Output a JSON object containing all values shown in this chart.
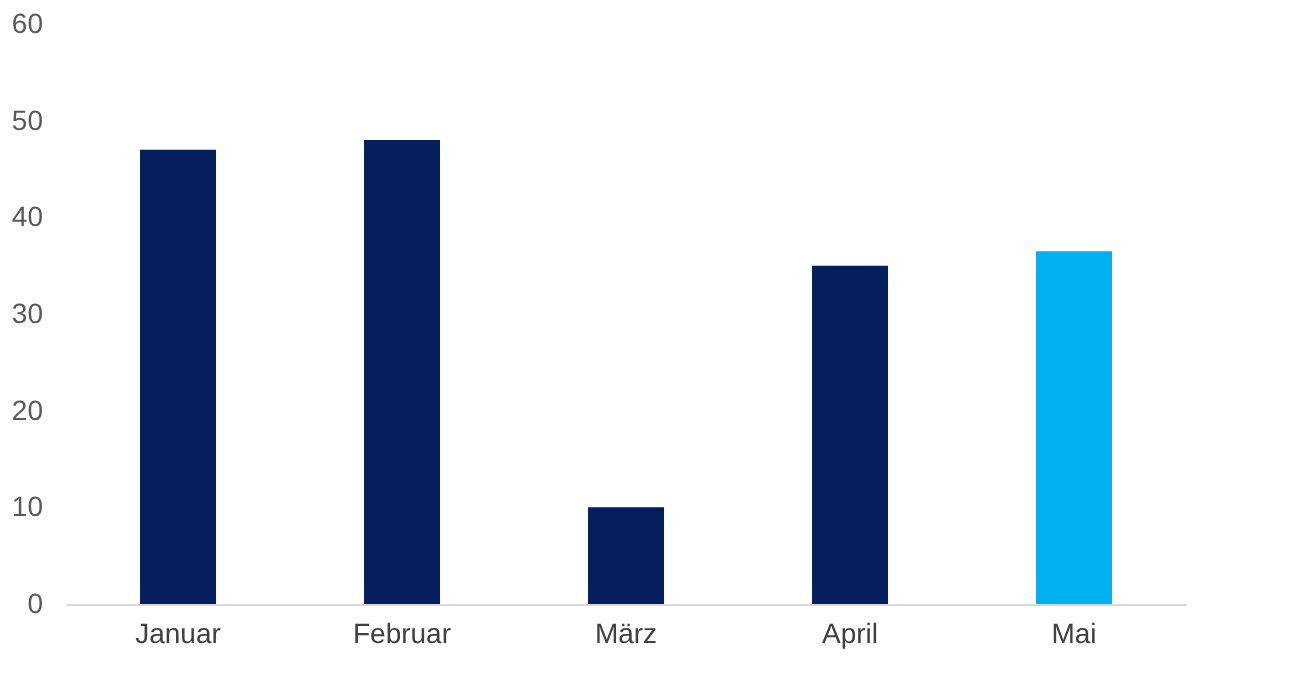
{
  "chart_data": {
    "type": "bar",
    "categories": [
      "Januar",
      "Februar",
      "März",
      "April",
      "Mai"
    ],
    "values": [
      47,
      48,
      10,
      35,
      36.5
    ],
    "colors": [
      "#041e5e",
      "#041e5e",
      "#041e5e",
      "#041e5e",
      "#00b0f0"
    ],
    "ylim": [
      0,
      60
    ],
    "yticks": [
      0,
      10,
      20,
      30,
      40,
      50,
      60
    ],
    "grid": false
  }
}
